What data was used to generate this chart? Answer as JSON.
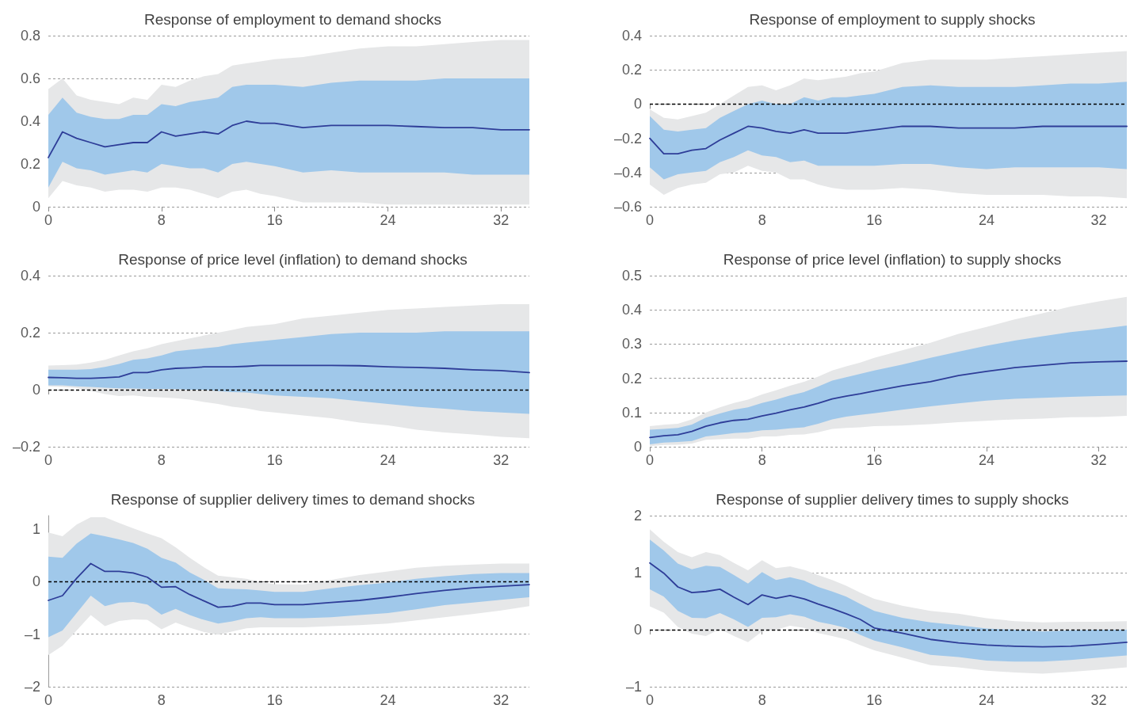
{
  "chart_data": [
    {
      "type": "line",
      "title": "Response of employment to demand shocks",
      "x": [
        0,
        1,
        2,
        3,
        4,
        5,
        6,
        7,
        8,
        9,
        10,
        11,
        12,
        13,
        14,
        15,
        16,
        18,
        20,
        22,
        24,
        26,
        28,
        30,
        32,
        34
      ],
      "xlim": [
        0,
        34
      ],
      "xticks": [
        0,
        8,
        16,
        24,
        32
      ],
      "ylim": [
        0,
        0.8
      ],
      "yticks": [
        0,
        0.2,
        0.4,
        0.6,
        0.8
      ],
      "grid": "y",
      "marker": "none",
      "line_style": "solid",
      "series": [
        {
          "color": "#e6e7e8",
          "values": [
            null,
            null,
            null,
            null,
            null,
            null,
            null,
            null,
            null,
            null,
            null,
            null,
            null,
            null,
            null,
            null,
            null,
            null,
            null,
            null,
            null,
            null,
            null,
            null,
            null,
            null
          ],
          "lower": [
            0.04,
            0.12,
            0.1,
            0.09,
            0.07,
            0.08,
            0.08,
            0.07,
            0.09,
            0.09,
            0.08,
            0.06,
            0.04,
            0.07,
            0.08,
            0.06,
            0.05,
            0.02,
            0.02,
            0.02,
            0.01,
            0.01,
            0.01,
            0.01,
            0.01,
            0.01
          ],
          "upper": [
            0.55,
            0.6,
            0.52,
            0.5,
            0.49,
            0.48,
            0.51,
            0.5,
            0.57,
            0.56,
            0.59,
            0.61,
            0.62,
            0.66,
            0.67,
            0.68,
            0.69,
            0.7,
            0.72,
            0.74,
            0.75,
            0.75,
            0.76,
            0.77,
            0.78,
            0.78
          ]
        },
        {
          "color": "#2e3d98",
          "values": [
            0.23,
            0.35,
            0.32,
            0.3,
            0.28,
            0.29,
            0.3,
            0.3,
            0.35,
            0.33,
            0.34,
            0.35,
            0.34,
            0.38,
            0.4,
            0.39,
            0.39,
            0.37,
            0.38,
            0.38,
            0.38,
            0.375,
            0.37,
            0.37,
            0.36,
            0.36
          ],
          "lower": [
            0.09,
            0.21,
            0.18,
            0.17,
            0.15,
            0.16,
            0.17,
            0.16,
            0.2,
            0.19,
            0.18,
            0.18,
            0.16,
            0.2,
            0.21,
            0.2,
            0.19,
            0.16,
            0.17,
            0.16,
            0.16,
            0.16,
            0.16,
            0.15,
            0.15,
            0.15
          ],
          "upper": [
            0.43,
            0.51,
            0.44,
            0.42,
            0.41,
            0.41,
            0.43,
            0.43,
            0.48,
            0.47,
            0.49,
            0.5,
            0.51,
            0.56,
            0.57,
            0.57,
            0.57,
            0.56,
            0.58,
            0.59,
            0.59,
            0.59,
            0.6,
            0.6,
            0.6,
            0.6
          ]
        }
      ]
    },
    {
      "type": "line",
      "title": "Response of employment to supply shocks",
      "x": [
        0,
        1,
        2,
        3,
        4,
        5,
        6,
        7,
        8,
        9,
        10,
        11,
        12,
        13,
        14,
        15,
        16,
        18,
        20,
        22,
        24,
        26,
        28,
        30,
        32,
        34
      ],
      "xlim": [
        0,
        34
      ],
      "xticks": [
        0,
        8,
        16,
        24,
        32
      ],
      "ylim": [
        -0.6,
        0.4
      ],
      "yticks": [
        {
          "value": -0.6,
          "label": "–0.6"
        },
        {
          "value": -0.4,
          "label": "–0.4"
        },
        {
          "value": -0.2,
          "label": "–0.2"
        },
        0,
        0.2,
        0.4
      ],
      "grid": "y",
      "marker": "none",
      "line_style": "solid",
      "ref_lines": [
        {
          "axis": "y",
          "value": 0,
          "color": "#000000",
          "line_style": "dashed"
        }
      ],
      "series": [
        {
          "color": "#e6e7e8",
          "values": [
            null,
            null,
            null,
            null,
            null,
            null,
            null,
            null,
            null,
            null,
            null,
            null,
            null,
            null,
            null,
            null,
            null,
            null,
            null,
            null,
            null,
            null,
            null,
            null,
            null,
            null
          ],
          "lower": [
            -0.47,
            -0.53,
            -0.49,
            -0.47,
            -0.46,
            -0.41,
            -0.4,
            -0.36,
            -0.39,
            -0.4,
            -0.44,
            -0.44,
            -0.47,
            -0.49,
            -0.5,
            -0.5,
            -0.5,
            -0.49,
            -0.5,
            -0.52,
            -0.53,
            -0.53,
            -0.53,
            -0.54,
            -0.54,
            -0.55
          ],
          "upper": [
            -0.03,
            -0.08,
            -0.09,
            -0.07,
            -0.05,
            0,
            0.05,
            0.1,
            0.11,
            0.08,
            0.11,
            0.15,
            0.14,
            0.15,
            0.16,
            0.18,
            0.19,
            0.24,
            0.26,
            0.26,
            0.26,
            0.27,
            0.28,
            0.29,
            0.3,
            0.31
          ]
        },
        {
          "color": "#2e3d98",
          "values": [
            -0.2,
            -0.29,
            -0.29,
            -0.27,
            -0.26,
            -0.21,
            -0.17,
            -0.13,
            -0.14,
            -0.16,
            -0.17,
            -0.15,
            -0.17,
            -0.17,
            -0.17,
            -0.16,
            -0.15,
            -0.13,
            -0.13,
            -0.14,
            -0.14,
            -0.14,
            -0.13,
            -0.13,
            -0.13,
            -0.13
          ],
          "lower": [
            -0.37,
            -0.44,
            -0.41,
            -0.4,
            -0.39,
            -0.34,
            -0.31,
            -0.27,
            -0.3,
            -0.31,
            -0.34,
            -0.33,
            -0.36,
            -0.36,
            -0.36,
            -0.36,
            -0.36,
            -0.35,
            -0.35,
            -0.37,
            -0.38,
            -0.37,
            -0.37,
            -0.37,
            -0.37,
            -0.38
          ],
          "upper": [
            -0.07,
            -0.15,
            -0.16,
            -0.15,
            -0.14,
            -0.08,
            -0.04,
            0,
            0.02,
            0,
            0,
            0.04,
            0.02,
            0.04,
            0.04,
            0.05,
            0.06,
            0.1,
            0.11,
            0.1,
            0.1,
            0.1,
            0.11,
            0.12,
            0.12,
            0.13
          ]
        }
      ]
    },
    {
      "type": "line",
      "title": "Response of price level (inflation) to demand shocks",
      "x": [
        0,
        1,
        2,
        3,
        4,
        5,
        6,
        7,
        8,
        9,
        10,
        11,
        12,
        13,
        14,
        15,
        16,
        18,
        20,
        22,
        24,
        26,
        28,
        30,
        32,
        34
      ],
      "xlim": [
        0,
        34
      ],
      "xticks": [
        0,
        8,
        16,
        24,
        32
      ],
      "ylim": [
        -0.2,
        0.4
      ],
      "yticks": [
        {
          "value": -0.2,
          "label": "–0.2"
        },
        0,
        0.2,
        0.4
      ],
      "grid": "y",
      "marker": "none",
      "line_style": "solid",
      "ref_lines": [
        {
          "axis": "y",
          "value": 0,
          "color": "#000000",
          "line_style": "dashed"
        }
      ],
      "series": [
        {
          "color": "#e6e7e8",
          "values": [
            null,
            null,
            null,
            null,
            null,
            null,
            null,
            null,
            null,
            null,
            null,
            null,
            null,
            null,
            null,
            null,
            null,
            null,
            null,
            null,
            null,
            null,
            null,
            null,
            null,
            null
          ],
          "lower": [
            0.012,
            0.01,
            0.006,
            -0.005,
            -0.015,
            -0.022,
            -0.02,
            -0.025,
            -0.027,
            -0.03,
            -0.035,
            -0.043,
            -0.05,
            -0.06,
            -0.065,
            -0.075,
            -0.08,
            -0.09,
            -0.1,
            -0.115,
            -0.125,
            -0.14,
            -0.15,
            -0.157,
            -0.165,
            -0.17
          ],
          "upper": [
            0.085,
            0.086,
            0.088,
            0.095,
            0.105,
            0.12,
            0.135,
            0.145,
            0.16,
            0.17,
            0.18,
            0.19,
            0.2,
            0.21,
            0.22,
            0.225,
            0.23,
            0.25,
            0.26,
            0.27,
            0.28,
            0.285,
            0.29,
            0.295,
            0.3,
            0.3
          ]
        },
        {
          "color": "#2e3d98",
          "values": [
            0.043,
            0.042,
            0.04,
            0.04,
            0.042,
            0.045,
            0.06,
            0.06,
            0.07,
            0.075,
            0.077,
            0.08,
            0.08,
            0.08,
            0.082,
            0.085,
            0.085,
            0.085,
            0.085,
            0.084,
            0.08,
            0.078,
            0.075,
            0.07,
            0.067,
            0.06
          ],
          "lower": [
            0.015,
            0.015,
            0.012,
            0.01,
            0.007,
            0.005,
            0.004,
            0.003,
            0.003,
            0.002,
            0,
            0,
            -0.005,
            -0.008,
            -0.01,
            -0.015,
            -0.02,
            -0.025,
            -0.03,
            -0.04,
            -0.05,
            -0.06,
            -0.067,
            -0.075,
            -0.08,
            -0.085
          ],
          "upper": [
            0.07,
            0.07,
            0.07,
            0.072,
            0.08,
            0.09,
            0.105,
            0.11,
            0.12,
            0.135,
            0.14,
            0.145,
            0.15,
            0.16,
            0.165,
            0.17,
            0.175,
            0.185,
            0.195,
            0.2,
            0.2,
            0.2,
            0.205,
            0.205,
            0.205,
            0.205
          ]
        }
      ]
    },
    {
      "type": "line",
      "title": "Response of price level (inflation) to supply shocks",
      "x": [
        0,
        1,
        2,
        3,
        4,
        5,
        6,
        7,
        8,
        9,
        10,
        11,
        12,
        13,
        14,
        15,
        16,
        18,
        20,
        22,
        24,
        26,
        28,
        30,
        32,
        34
      ],
      "xlim": [
        0,
        34
      ],
      "xticks": [
        0,
        8,
        16,
        24,
        32
      ],
      "ylim": [
        0,
        0.5
      ],
      "yticks": [
        0,
        0.1,
        0.2,
        0.3,
        0.4,
        0.5
      ],
      "grid": "y",
      "marker": "none",
      "line_style": "solid",
      "series": [
        {
          "color": "#e6e7e8",
          "values": [
            null,
            null,
            null,
            null,
            null,
            null,
            null,
            null,
            null,
            null,
            null,
            null,
            null,
            null,
            null,
            null,
            null,
            null,
            null,
            null,
            null,
            null,
            null,
            null,
            null,
            null
          ],
          "lower": [
            0.002,
            0.005,
            0.006,
            0.009,
            0.02,
            0.022,
            0.024,
            0.024,
            0.03,
            0.03,
            0.035,
            0.036,
            0.042,
            0.052,
            0.055,
            0.057,
            0.06,
            0.062,
            0.066,
            0.072,
            0.076,
            0.08,
            0.082,
            0.086,
            0.087,
            0.09
          ],
          "upper": [
            0.06,
            0.064,
            0.067,
            0.08,
            0.1,
            0.115,
            0.128,
            0.138,
            0.153,
            0.165,
            0.178,
            0.19,
            0.205,
            0.223,
            0.235,
            0.246,
            0.26,
            0.282,
            0.304,
            0.33,
            0.35,
            0.372,
            0.39,
            0.41,
            0.425,
            0.438
          ]
        },
        {
          "color": "#2e3d98",
          "values": [
            0.027,
            0.032,
            0.035,
            0.045,
            0.06,
            0.07,
            0.077,
            0.08,
            0.09,
            0.098,
            0.108,
            0.116,
            0.127,
            0.14,
            0.148,
            0.155,
            0.163,
            0.178,
            0.19,
            0.208,
            0.22,
            0.231,
            0.238,
            0.245,
            0.248,
            0.25
          ],
          "lower": [
            0.007,
            0.012,
            0.014,
            0.017,
            0.03,
            0.035,
            0.04,
            0.042,
            0.048,
            0.05,
            0.054,
            0.057,
            0.067,
            0.08,
            0.088,
            0.093,
            0.098,
            0.108,
            0.118,
            0.127,
            0.135,
            0.14,
            0.143,
            0.146,
            0.148,
            0.15
          ],
          "upper": [
            0.05,
            0.052,
            0.055,
            0.065,
            0.085,
            0.097,
            0.108,
            0.115,
            0.128,
            0.138,
            0.15,
            0.16,
            0.176,
            0.193,
            0.203,
            0.213,
            0.223,
            0.24,
            0.26,
            0.278,
            0.295,
            0.31,
            0.323,
            0.335,
            0.344,
            0.354
          ]
        }
      ]
    },
    {
      "type": "line",
      "title": "Response of supplier delivery times to demand shocks",
      "x": [
        0,
        1,
        2,
        3,
        4,
        5,
        6,
        7,
        8,
        9,
        10,
        11,
        12,
        13,
        14,
        15,
        16,
        18,
        20,
        22,
        24,
        26,
        28,
        30,
        32,
        34
      ],
      "xlim": [
        0,
        34
      ],
      "xticks": [
        0,
        8,
        16,
        24,
        32
      ],
      "ylim": [
        -2,
        1.25
      ],
      "yticks": [
        {
          "value": -2,
          "label": "–2"
        },
        {
          "value": -1,
          "label": "–1"
        },
        0,
        1
      ],
      "grid": "y",
      "marker": "none",
      "line_style": "solid",
      "ref_lines": [
        {
          "axis": "y",
          "value": 0,
          "color": "#000000",
          "line_style": "dashed"
        }
      ],
      "series": [
        {
          "color": "#e6e7e8",
          "values": [
            null,
            null,
            null,
            null,
            null,
            null,
            null,
            null,
            null,
            null,
            null,
            null,
            null,
            null,
            null,
            null,
            null,
            null,
            null,
            null,
            null,
            null,
            null,
            null,
            null,
            null
          ],
          "lower": [
            -1.4,
            -1.22,
            -0.93,
            -0.64,
            -0.85,
            -0.75,
            -0.72,
            -0.73,
            -0.91,
            -0.78,
            -0.88,
            -0.96,
            -1.01,
            -0.95,
            -0.89,
            -0.87,
            -0.87,
            -0.87,
            -0.85,
            -0.83,
            -0.8,
            -0.74,
            -0.68,
            -0.62,
            -0.55,
            -0.47
          ],
          "upper": [
            0.93,
            0.86,
            1.08,
            1.22,
            1.22,
            1.11,
            1.01,
            0.91,
            0.82,
            0.65,
            0.45,
            0.27,
            0.11,
            0.08,
            0.05,
            -0.01,
            -0.05,
            -0.06,
            0.03,
            0.12,
            0.19,
            0.26,
            0.3,
            0.32,
            0.34,
            0.34
          ]
        },
        {
          "color": "#2e3d98",
          "values": [
            -0.36,
            -0.27,
            0.06,
            0.34,
            0.19,
            0.19,
            0.16,
            0.08,
            -0.11,
            -0.1,
            -0.25,
            -0.37,
            -0.49,
            -0.47,
            -0.41,
            -0.41,
            -0.44,
            -0.44,
            -0.4,
            -0.36,
            -0.3,
            -0.23,
            -0.17,
            -0.12,
            -0.09,
            -0.06
          ],
          "lower": [
            -1.06,
            -0.93,
            -0.6,
            -0.27,
            -0.47,
            -0.4,
            -0.39,
            -0.44,
            -0.63,
            -0.52,
            -0.64,
            -0.73,
            -0.8,
            -0.76,
            -0.7,
            -0.68,
            -0.7,
            -0.7,
            -0.68,
            -0.64,
            -0.6,
            -0.53,
            -0.45,
            -0.4,
            -0.35,
            -0.3
          ],
          "upper": [
            0.47,
            0.45,
            0.72,
            0.91,
            0.86,
            0.8,
            0.73,
            0.62,
            0.45,
            0.36,
            0.17,
            0.03,
            -0.13,
            -0.14,
            -0.15,
            -0.17,
            -0.2,
            -0.2,
            -0.13,
            -0.07,
            -0.02,
            0.05,
            0.1,
            0.14,
            0.16,
            0.16
          ]
        }
      ]
    },
    {
      "type": "line",
      "title": "Response of supplier delivery times to supply shocks",
      "x": [
        0,
        1,
        2,
        3,
        4,
        5,
        6,
        7,
        8,
        9,
        10,
        11,
        12,
        13,
        14,
        15,
        16,
        18,
        20,
        22,
        24,
        26,
        28,
        30,
        32,
        34
      ],
      "xlim": [
        0,
        34
      ],
      "xticks": [
        0,
        8,
        16,
        24,
        32
      ],
      "ylim": [
        -1,
        2
      ],
      "yticks": [
        {
          "value": -1,
          "label": "–1"
        },
        0,
        1,
        2
      ],
      "grid": "y",
      "marker": "none",
      "line_style": "solid",
      "ref_lines": [
        {
          "axis": "y",
          "value": 0,
          "color": "#000000",
          "line_style": "dashed"
        }
      ],
      "series": [
        {
          "color": "#e6e7e8",
          "values": [
            null,
            null,
            null,
            null,
            null,
            null,
            null,
            null,
            null,
            null,
            null,
            null,
            null,
            null,
            null,
            null,
            null,
            null,
            null,
            null,
            null,
            null,
            null,
            null,
            null,
            null
          ],
          "lower": [
            0.41,
            0.3,
            0.05,
            -0.07,
            -0.11,
            0.01,
            -0.11,
            -0.22,
            -0.03,
            0,
            0.07,
            0.03,
            -0.06,
            -0.11,
            -0.17,
            -0.27,
            -0.36,
            -0.49,
            -0.62,
            -0.66,
            -0.72,
            -0.75,
            -0.77,
            -0.74,
            -0.7,
            -0.66
          ],
          "upper": [
            1.76,
            1.54,
            1.36,
            1.27,
            1.36,
            1.31,
            1.17,
            1.04,
            1.22,
            1.08,
            1.11,
            1.05,
            0.96,
            0.87,
            0.77,
            0.65,
            0.54,
            0.42,
            0.33,
            0.28,
            0.2,
            0.15,
            0.13,
            0.14,
            0.14,
            0.15
          ]
        },
        {
          "color": "#2e3d98",
          "values": [
            1.17,
            0.99,
            0.75,
            0.65,
            0.67,
            0.71,
            0.57,
            0.44,
            0.61,
            0.55,
            0.6,
            0.54,
            0.45,
            0.37,
            0.28,
            0.18,
            0.03,
            -0.06,
            -0.17,
            -0.23,
            -0.27,
            -0.29,
            -0.3,
            -0.29,
            -0.26,
            -0.22
          ],
          "lower": [
            0.71,
            0.58,
            0.33,
            0.21,
            0.2,
            0.29,
            0.18,
            0.05,
            0.21,
            0.22,
            0.27,
            0.23,
            0.14,
            0.09,
            0.03,
            -0.09,
            -0.19,
            -0.31,
            -0.44,
            -0.48,
            -0.54,
            -0.56,
            -0.56,
            -0.53,
            -0.49,
            -0.45
          ],
          "upper": [
            1.58,
            1.39,
            1.16,
            1.06,
            1.12,
            1.1,
            0.96,
            0.81,
            1.01,
            0.87,
            0.92,
            0.86,
            0.75,
            0.67,
            0.58,
            0.45,
            0.33,
            0.21,
            0.13,
            0.08,
            0.02,
            0,
            -0.03,
            -0.01,
            0,
            0
          ]
        }
      ]
    }
  ]
}
